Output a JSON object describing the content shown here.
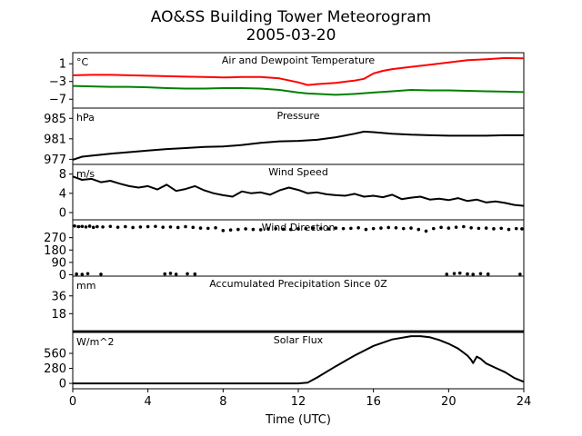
{
  "title_line1": "AO&SS Building Tower Meteorogram",
  "title_line2": "2005-03-20",
  "xlabel": "Time (UTC)",
  "x_ticks": [
    "0",
    "4",
    "8",
    "12",
    "16",
    "20",
    "24"
  ],
  "chart_data": {
    "type": "line",
    "title": "AO&SS Building Tower Meteorogram 2005-03-20",
    "xlabel": "Time (UTC)",
    "xlim": [
      0,
      24
    ],
    "x_ticks": [
      0,
      4,
      8,
      12,
      16,
      20,
      24
    ],
    "panels": [
      {
        "id": "temp",
        "title": "Air and Dewpoint Temperature",
        "unit": "°C",
        "ylim": [
          -9,
          3.5
        ],
        "y_ticks": [
          1,
          -3,
          -7
        ],
        "y_tick_labels": [
          "1",
          "−3",
          "−7"
        ],
        "series": [
          {
            "color": "#ff0000",
            "x": [
              0,
              1,
              2,
              3,
              4,
              5,
              6,
              7,
              8,
              9,
              10,
              11,
              12,
              12.5,
              13,
              14,
              15,
              15.5,
              16,
              16.5,
              17,
              18,
              19,
              20,
              21,
              22,
              23,
              24
            ],
            "y": [
              -1.6,
              -1.5,
              -1.5,
              -1.6,
              -1.7,
              -1.8,
              -1.9,
              -2.0,
              -2.1,
              -2.0,
              -2.0,
              -2.3,
              -3.2,
              -3.8,
              -3.6,
              -3.3,
              -2.8,
              -2.4,
              -1.2,
              -0.6,
              -0.2,
              0.3,
              0.8,
              1.3,
              1.8,
              2.0,
              2.3,
              2.2
            ]
          },
          {
            "color": "#008000",
            "x": [
              0,
              1,
              2,
              3,
              4,
              5,
              6,
              7,
              8,
              9,
              10,
              11,
              12,
              12.5,
              13,
              14,
              15,
              16,
              17,
              18,
              19,
              20,
              21,
              22,
              23,
              24
            ],
            "y": [
              -4.0,
              -4.1,
              -4.2,
              -4.2,
              -4.3,
              -4.5,
              -4.6,
              -4.6,
              -4.5,
              -4.5,
              -4.6,
              -4.9,
              -5.5,
              -5.7,
              -5.8,
              -6.0,
              -5.8,
              -5.5,
              -5.2,
              -4.9,
              -5.0,
              -5.0,
              -5.1,
              -5.2,
              -5.3,
              -5.4
            ]
          }
        ]
      },
      {
        "id": "pressure",
        "title": "Pressure",
        "unit": "hPa",
        "ylim": [
          976,
          987
        ],
        "y_ticks": [
          977,
          981,
          985
        ],
        "y_tick_labels": [
          "977",
          "981",
          "985"
        ],
        "series": [
          {
            "color": "#000000",
            "x": [
              0,
              0.5,
              1,
              2,
              3,
              4,
              5,
              6,
              7,
              8,
              9,
              10,
              11,
              12,
              13,
              14,
              15,
              15.5,
              16,
              17,
              18,
              19,
              20,
              21,
              22,
              23,
              24
            ],
            "y": [
              976.9,
              977.5,
              977.7,
              978.1,
              978.4,
              978.7,
              979.0,
              979.2,
              979.4,
              979.5,
              979.8,
              980.2,
              980.5,
              980.6,
              980.8,
              981.3,
              982.0,
              982.4,
              982.3,
              982.0,
              981.8,
              981.7,
              981.6,
              981.6,
              981.6,
              981.7,
              981.7
            ]
          }
        ]
      },
      {
        "id": "wind_speed",
        "title": "Wind Speed",
        "unit": "m/s",
        "ylim": [
          -1.5,
          10
        ],
        "y_ticks": [
          0,
          4,
          8
        ],
        "y_tick_labels": [
          "0",
          "4",
          "8"
        ],
        "series": [
          {
            "color": "#000000",
            "x": [
              0,
              0.5,
              1,
              1.5,
              2,
              2.5,
              3,
              3.5,
              4,
              4.5,
              5,
              5.5,
              6,
              6.5,
              7,
              7.5,
              8,
              8.5,
              9,
              9.5,
              10,
              10.5,
              11,
              11.5,
              12,
              12.5,
              13,
              13.5,
              14,
              14.5,
              15,
              15.5,
              16,
              16.5,
              17,
              17.5,
              18,
              18.5,
              19,
              19.5,
              20,
              20.5,
              21,
              21.5,
              22,
              22.5,
              23,
              23.5,
              24
            ],
            "y": [
              7.5,
              6.8,
              7.0,
              6.3,
              6.6,
              6.0,
              5.5,
              5.2,
              5.5,
              4.8,
              5.8,
              4.5,
              4.9,
              5.5,
              4.6,
              4.0,
              3.6,
              3.3,
              4.4,
              4.0,
              4.2,
              3.7,
              4.6,
              5.2,
              4.7,
              4.0,
              4.2,
              3.8,
              3.6,
              3.5,
              3.9,
              3.3,
              3.5,
              3.2,
              3.7,
              2.8,
              3.1,
              3.3,
              2.7,
              2.9,
              2.6,
              3.0,
              2.4,
              2.7,
              2.1,
              2.3,
              2.0,
              1.6,
              1.4
            ]
          }
        ]
      },
      {
        "id": "wind_direction",
        "title": "Wind Direction",
        "unit": "°",
        "ylim": [
          -10,
          400
        ],
        "y_ticks": [
          0,
          90,
          180,
          270
        ],
        "y_tick_labels": [
          "0",
          "90",
          "180",
          "270"
        ],
        "series": [
          {
            "color": "#000000",
            "style": "dots",
            "x": [
              0.1,
              0.3,
              0.5,
              0.7,
              0.9,
              1.1,
              1.3,
              1.6,
              2.0,
              2.4,
              2.8,
              3.2,
              3.6,
              4.0,
              4.4,
              4.8,
              5.2,
              5.6,
              6.0,
              6.4,
              6.8,
              7.2,
              7.6,
              8.0,
              8.4,
              8.8,
              9.2,
              9.6,
              10.0,
              10.4,
              10.8,
              11.2,
              11.6,
              12.0,
              12.4,
              12.8,
              13.2,
              13.6,
              14.0,
              14.4,
              14.8,
              15.2,
              15.6,
              16.0,
              16.4,
              16.8,
              17.2,
              17.6,
              18.0,
              18.4,
              18.8,
              19.2,
              19.6,
              20.0,
              20.4,
              20.8,
              21.2,
              21.6,
              22.0,
              22.4,
              22.8,
              23.2,
              23.6,
              23.9,
              0.2,
              0.5,
              0.8,
              1.5,
              4.9,
              5.2,
              5.5,
              6.1,
              6.5,
              19.9,
              20.3,
              20.6,
              21.0,
              21.3,
              21.7,
              22.1,
              23.8
            ],
            "y": [
              355,
              350,
              352,
              348,
              354,
              345,
              350,
              348,
              352,
              346,
              350,
              344,
              348,
              350,
              352,
              346,
              348,
              344,
              350,
              345,
              340,
              338,
              342,
              322,
              326,
              330,
              334,
              330,
              328,
              334,
              336,
              332,
              330,
              334,
              336,
              340,
              338,
              334,
              340,
              336,
              338,
              342,
              330,
              336,
              340,
              344,
              342,
              336,
              340,
              330,
              318,
              336,
              345,
              340,
              346,
              350,
              342,
              338,
              340,
              335,
              338,
              330,
              336,
              334,
              5,
              3,
              8,
              4,
              6,
              10,
              4,
              7,
              5,
              4,
              9,
              12,
              6,
              3,
              8,
              5,
              4
            ]
          }
        ]
      },
      {
        "id": "precip",
        "title": "Accumulated Precipitation Since 0Z",
        "unit": "mm",
        "ylim": [
          -1,
          56
        ],
        "y_ticks": [
          18,
          36
        ],
        "y_tick_labels": [
          "18",
          "36"
        ],
        "series": [
          {
            "color": "#000000",
            "x": [
              0,
              24
            ],
            "y": [
              0,
              0
            ]
          }
        ]
      },
      {
        "id": "solar",
        "title": "Solar Flux",
        "unit": "W/m^2",
        "ylim": [
          -100,
          950
        ],
        "y_ticks": [
          0,
          280,
          560
        ],
        "y_tick_labels": [
          "0",
          "280",
          "560"
        ],
        "series": [
          {
            "color": "#000000",
            "x": [
              0,
              2,
              4,
              6,
              8,
              10,
              11,
              12,
              12.5,
              13,
              14,
              15,
              16,
              17,
              18,
              18.5,
              19,
              19.5,
              20,
              20.5,
              21,
              21.2,
              21.3,
              21.5,
              21.7,
              22,
              22.5,
              23,
              23.5,
              24
            ],
            "y": [
              0,
              0,
              0,
              0,
              0,
              0,
              0,
              0,
              15,
              110,
              320,
              520,
              700,
              820,
              880,
              880,
              860,
              810,
              740,
              650,
              520,
              440,
              380,
              500,
              460,
              370,
              290,
              210,
              100,
              30
            ]
          }
        ]
      }
    ]
  }
}
